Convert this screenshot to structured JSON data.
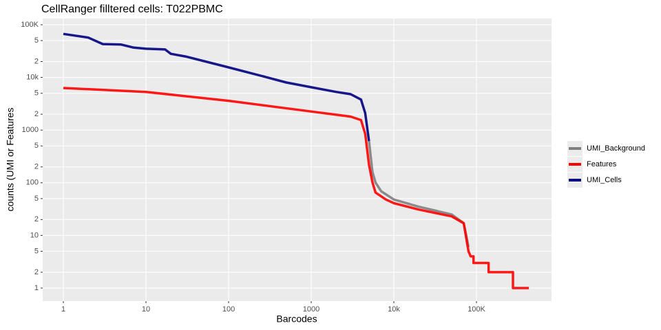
{
  "chart_data": {
    "type": "line",
    "title": "CellRanger filltered cells: T022PBMC",
    "x_label": "Barcodes",
    "y_label": "counts (UMI or Features",
    "log_x": true,
    "log_y": true,
    "grid": true,
    "legend_position": "right",
    "xlim": [
      0.562,
      809000
    ],
    "ylim": [
      0.565,
      131000
    ],
    "xticks": [
      1,
      10,
      100,
      1000,
      {
        "value": 10000,
        "label": "10k"
      },
      {
        "value": 100000,
        "label": "100K"
      }
    ],
    "yticks": [
      1,
      2,
      5,
      10,
      {
        "value": 20,
        "label": "2"
      },
      {
        "value": 50,
        "label": "5"
      },
      100,
      {
        "value": 200,
        "label": "2"
      },
      {
        "value": 500,
        "label": "5"
      },
      1000,
      {
        "value": 2000,
        "label": "2"
      },
      {
        "value": 5000,
        "label": "5"
      },
      {
        "value": 10000,
        "label": "10k"
      },
      {
        "value": 20000,
        "label": "2"
      },
      {
        "value": 50000,
        "label": "5"
      },
      {
        "value": 100000,
        "label": "100K"
      }
    ],
    "series": [
      {
        "name": "UMI_Background",
        "color": "#7f7f7f",
        "x": [
          5000,
          5500,
          6000,
          7000,
          10000,
          20000,
          50000,
          70000,
          75000,
          80000
        ],
        "values": [
          620,
          160,
          101,
          69,
          48,
          35,
          25,
          17,
          10,
          6
        ]
      },
      {
        "name": "Features",
        "color": "#ff0000",
        "x": [
          1,
          10,
          100,
          1000,
          3000,
          4000,
          4500,
          5000,
          5500,
          6000,
          8000,
          10000,
          20000,
          50000,
          70000,
          75000,
          80000,
          85000,
          92000,
          92000,
          140000,
          140000,
          276000,
          276000,
          430000
        ],
        "values": [
          6300,
          5300,
          3600,
          2250,
          1800,
          1550,
          850,
          220,
          102,
          65,
          48,
          41,
          31,
          23,
          17,
          9,
          5,
          4,
          4,
          3,
          3,
          2,
          2,
          1,
          1
        ]
      },
      {
        "name": "UMI_Cells",
        "color": "#000080",
        "x": [
          1,
          2,
          3,
          5,
          7,
          10,
          17,
          20,
          30,
          100,
          300,
          500,
          1000,
          2000,
          3000,
          4000,
          4500,
          5000
        ],
        "values": [
          67000,
          57000,
          43000,
          42000,
          37000,
          35000,
          34000,
          28000,
          25000,
          15500,
          9900,
          8000,
          6500,
          5300,
          4800,
          3800,
          2100,
          620
        ]
      }
    ]
  }
}
